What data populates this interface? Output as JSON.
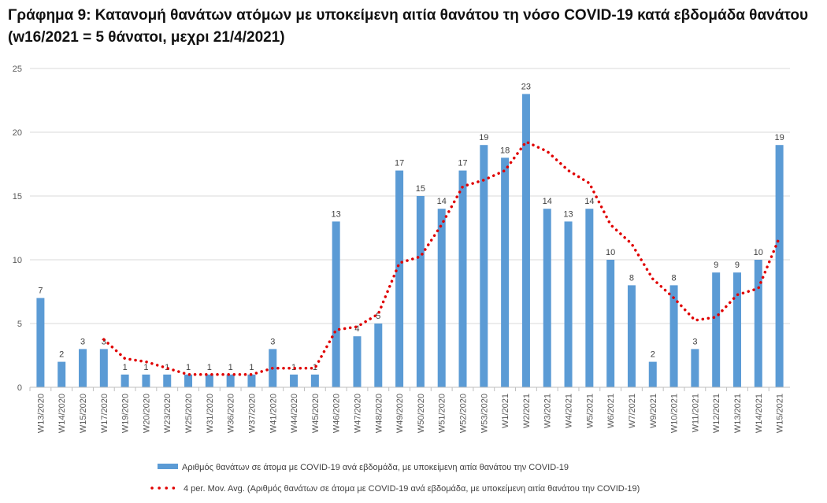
{
  "chart_data": {
    "type": "bar",
    "title": "Γράφημα 9: Κατανομή θανάτων ατόμων με υποκείμενη αιτία θανάτου τη νόσο COVID-19 κατά εβδομάδα θανάτου (w16/2021 = 5 θάνατοι, μεχρι 21/4/2021)",
    "xlabel": "",
    "ylabel": "",
    "ylim": [
      0,
      25
    ],
    "yticks": [
      0,
      5,
      10,
      15,
      20,
      25
    ],
    "grid": true,
    "legend_position": "bottom",
    "categories": [
      "W13/2020",
      "W14/2020",
      "W15/2020",
      "W17/2020",
      "W19/2020",
      "W20/2020",
      "W23/2020",
      "W25/2020",
      "W31/2020",
      "W36/2020",
      "W37/2020",
      "W41/2020",
      "W44/2020",
      "W45/2020",
      "W46/2020",
      "W47/2020",
      "W48/2020",
      "W49/2020",
      "W50/2020",
      "W51/2020",
      "W52/2020",
      "W53/2020",
      "W1/2021",
      "W2/2021",
      "W3/2021",
      "W4/2021",
      "W5/2021",
      "W6/2021",
      "W7/2021",
      "W9/2021",
      "W10/2021",
      "W11/2021",
      "W12/2021",
      "W13/2021",
      "W14/2021",
      "W15/2021"
    ],
    "series": [
      {
        "name": "Αριθμός θανάτων σε άτομα με COVID-19 ανά εβδομάδα, με υποκείμενη αιτία θανάτου την COVID-19",
        "type": "bar",
        "color": "#5b9bd5",
        "values": [
          7,
          2,
          3,
          3,
          1,
          1,
          1,
          1,
          1,
          1,
          1,
          3,
          1,
          1,
          13,
          4,
          5,
          17,
          15,
          14,
          17,
          19,
          18,
          23,
          14,
          13,
          14,
          10,
          8,
          2,
          8,
          3,
          9,
          9,
          10,
          19
        ]
      },
      {
        "name": "4 per. Mov. Avg. (Αριθμός θανάτων σε άτομα με COVID-19 ανά εβδομάδα, με υποκείμενη αιτία θανάτου την COVID-19)",
        "type": "line",
        "style": "dotted",
        "color": "#e00000",
        "values": [
          null,
          null,
          null,
          3.75,
          2.25,
          2,
          1.5,
          1,
          1,
          1,
          1,
          1.5,
          1.5,
          1.5,
          4.5,
          4.75,
          5.75,
          9.75,
          10.25,
          12.75,
          15.75,
          16.25,
          17,
          19.25,
          18.5,
          17,
          16,
          12.75,
          11.25,
          8.5,
          7,
          5.25,
          5.5,
          7.25,
          7.75,
          11.75
        ]
      }
    ]
  }
}
